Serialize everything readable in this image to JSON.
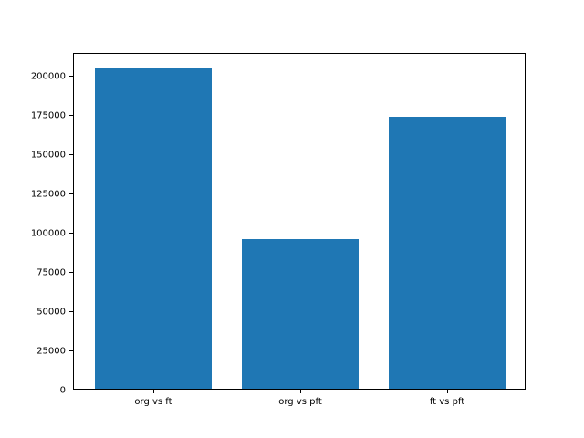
{
  "chart_data": {
    "type": "bar",
    "title": "",
    "xlabel": "",
    "ylabel": "",
    "categories": [
      "org vs ft",
      "org vs pft",
      "ft vs pft"
    ],
    "values": [
      204000,
      95000,
      173000
    ],
    "yticks": [
      0,
      25000,
      50000,
      75000,
      100000,
      125000,
      150000,
      175000,
      200000
    ],
    "ylim": [
      0,
      214200
    ],
    "bar_color": "#1f77b4",
    "bar_width": 0.8,
    "grid": false,
    "legend": false
  }
}
